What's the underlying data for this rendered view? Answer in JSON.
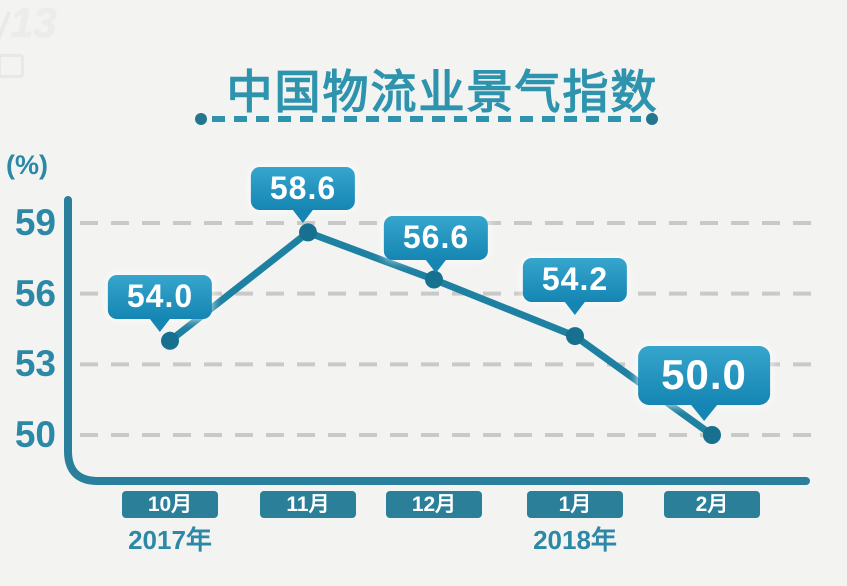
{
  "watermark": {
    "channel": "13"
  },
  "header": {
    "title": "中国物流业景气指数"
  },
  "chart_data": {
    "type": "line",
    "title": "中国物流业景气指数",
    "ylabel": "(%)",
    "unit": "%",
    "categories": [
      "10月",
      "11月",
      "12月",
      "1月",
      "2月"
    ],
    "values": [
      54.0,
      58.6,
      56.6,
      54.2,
      50.0
    ],
    "point_labels": [
      "54.0",
      "58.6",
      "56.6",
      "54.2",
      "50.0"
    ],
    "year_labels": [
      {
        "text": "2017年",
        "category_index": 0
      },
      {
        "text": "2018年",
        "category_index": 3
      }
    ],
    "y_ticks": [
      59,
      56,
      53,
      50
    ],
    "ylim": [
      48.8,
      60.2
    ],
    "grid": "dashed-horizontal",
    "legend": "none",
    "emphasized_point_index": 4
  },
  "colors": {
    "background": "#f3f4f2",
    "title_teal": "#2e93ad",
    "underline_dot_teal": "#26758f",
    "axis_label_teal": "#2b88a7",
    "axis_stroke": "#2a809c",
    "line": "#1f81a1",
    "point": "#17708f",
    "bubble_gradient_top": "#36a6cd",
    "bubble_gradient_bottom": "#1585b3",
    "month_box": "#2b7f99",
    "grid": "#c9c9c9"
  }
}
